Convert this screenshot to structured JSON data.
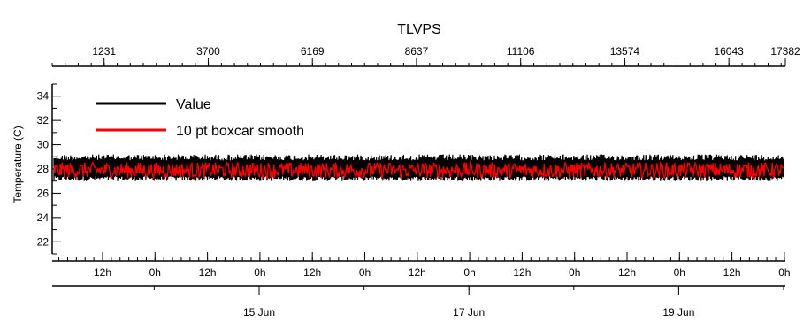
{
  "chart_data": {
    "type": "line",
    "title": "TLVPS",
    "ylabel": "Temperature (C)",
    "xlabel": "",
    "ylim": [
      21,
      35
    ],
    "y_ticks": [
      22,
      24,
      26,
      28,
      30,
      32,
      34
    ],
    "top_axis": {
      "range": [
        0,
        17382
      ],
      "ticks": [
        1231,
        3700,
        6169,
        8637,
        11106,
        13574,
        16043,
        17382
      ]
    },
    "time_axis": {
      "hour_labels": [
        "12h",
        "0h",
        "12h",
        "0h",
        "12h",
        "0h",
        "12h",
        "0h",
        "12h",
        "0h",
        "12h",
        "0h",
        "12h",
        "0h"
      ],
      "day_labels": [
        "15 Jun",
        "17 Jun",
        "19 Jun"
      ]
    },
    "legend_position": "top-left",
    "series": [
      {
        "name": "Value",
        "color": "#000000",
        "band": true,
        "low": 27.0,
        "high": 29.2,
        "mean": 28.0
      },
      {
        "name": "10 pt boxcar smooth",
        "color": "#ff0000",
        "band": false,
        "low": 27.3,
        "high": 28.6,
        "mean": 27.9
      }
    ]
  }
}
